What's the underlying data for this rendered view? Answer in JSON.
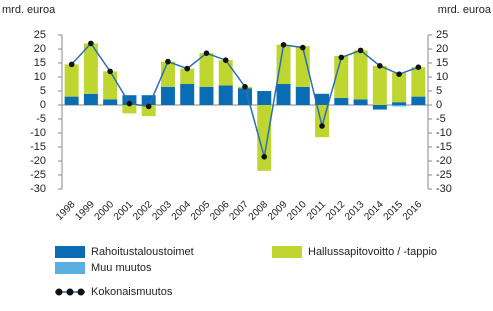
{
  "chart_data": {
    "type": "bar",
    "y_label": "mrd. euroa",
    "y2_label": "mrd. euroa",
    "categories": [
      "1998",
      "1999",
      "2000",
      "2001",
      "2002",
      "2003",
      "2004",
      "2005",
      "2006",
      "2007",
      "2008",
      "2009",
      "2010",
      "2011",
      "2012",
      "2013",
      "2014",
      "2015",
      "2016"
    ],
    "series": [
      {
        "name": "Rahoitustaloustoimet",
        "color": "#0a6db3",
        "type": "bar",
        "values": [
          3,
          4,
          2,
          3.5,
          3.5,
          6.5,
          7.5,
          6.5,
          7,
          6,
          5,
          7.5,
          6.5,
          4,
          2.5,
          2,
          -1.5,
          1,
          3
        ]
      },
      {
        "name": "Muu muutos",
        "color": "#5aaee0",
        "type": "bar",
        "values": [
          0,
          0,
          0,
          0,
          0,
          0,
          0,
          0,
          0,
          0,
          0,
          0,
          0,
          0,
          0,
          0,
          -0.3,
          -0.5,
          0
        ]
      },
      {
        "name": "Hallussapitovoitto / -tappio",
        "color": "#bfd630",
        "type": "bar",
        "values": [
          11.5,
          18,
          10,
          -3,
          -4,
          9,
          5.5,
          12,
          9,
          0.5,
          -23.5,
          14,
          14.5,
          -11.5,
          15,
          17.5,
          14,
          10.5,
          10.5
        ]
      },
      {
        "name": "Kokonaismuutos",
        "color": "#2a6fb5",
        "type": "line",
        "values": [
          14.5,
          22,
          12,
          0.5,
          -0.5,
          15.5,
          13,
          18.5,
          16,
          6.5,
          -18.5,
          21.5,
          20.5,
          -7.5,
          17,
          19.5,
          14,
          11,
          13.5
        ]
      }
    ],
    "ylim": [
      -30,
      25
    ],
    "yticks": [
      25,
      20,
      15,
      10,
      5,
      0,
      -5,
      -10,
      -15,
      -20,
      -25,
      -30
    ],
    "y2lim": [
      -30,
      25
    ],
    "y2ticks": [
      25,
      20,
      15,
      10,
      5,
      0,
      -5,
      -10,
      -15,
      -20,
      -25,
      -30
    ],
    "grid": false
  }
}
